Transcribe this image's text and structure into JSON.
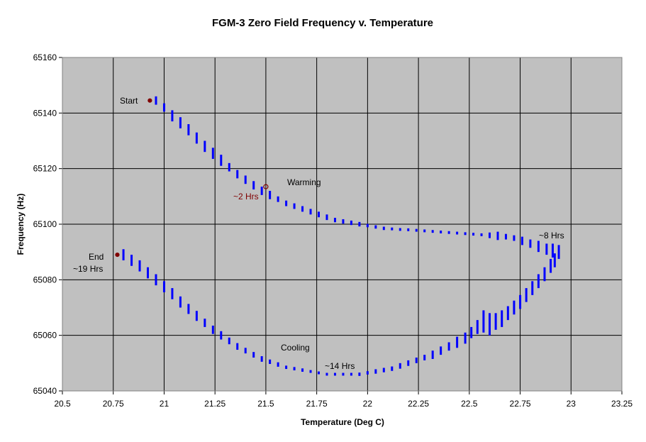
{
  "chart_data": {
    "type": "scatter",
    "title": "FGM-3 Zero Field Frequency  v.  Temperature",
    "xlabel": "Temperature (Deg C)",
    "ylabel": "Frequency (Hz)",
    "xlim": [
      20.5,
      23.25
    ],
    "ylim": [
      65040,
      65160
    ],
    "xticks": [
      "20.5",
      "20.75",
      "21",
      "21.25",
      "21.5",
      "21.75",
      "22",
      "22.25",
      "22.5",
      "22.75",
      "23",
      "23.25"
    ],
    "yticks": [
      "65040",
      "65060",
      "65080",
      "65100",
      "65120",
      "65140",
      "65160"
    ],
    "grid": true,
    "plot_background": "#C0C0C0",
    "series_color": "#0000FF",
    "marker_color": "#800000",
    "series": [
      {
        "x": [
          20.96,
          21.0,
          21.04,
          21.08,
          21.12,
          21.16,
          21.2,
          21.24,
          21.28,
          21.32,
          21.36,
          21.4,
          21.44,
          21.48,
          21.52,
          21.56,
          21.6,
          21.64,
          21.68,
          21.72,
          21.76,
          21.8,
          21.84,
          21.88,
          21.92,
          21.96,
          22.0,
          22.04,
          22.08,
          22.12,
          22.16,
          22.2,
          22.24,
          22.28,
          22.32,
          22.36,
          22.4,
          22.44,
          22.48,
          22.52,
          22.56,
          22.6,
          22.64,
          22.68,
          22.72,
          22.76,
          22.8,
          22.84,
          22.88,
          22.91,
          22.94
        ],
        "y": [
          65144.5,
          65142,
          65139,
          65136.5,
          65134,
          65131,
          65128,
          65125.5,
          65123,
          65120.5,
          65118,
          65116,
          65114,
          65112,
          65110.5,
          65109,
          65107.5,
          65106.5,
          65105.5,
          65104.5,
          65103.5,
          65102.5,
          65101.5,
          65101,
          65100.5,
          65100,
          65099.5,
          65099,
          65098.5,
          65098.3,
          65098.1,
          65098,
          65097.8,
          65097.6,
          65097.4,
          65097.2,
          65097,
          65096.8,
          65096.6,
          65096.4,
          65096.2,
          65096,
          65095.8,
          65095.5,
          65095,
          65094,
          65093,
          65092,
          65091,
          65090.5,
          65090
        ],
        "spread": [
          1.5,
          1.5,
          2,
          2,
          2,
          2,
          2,
          2,
          2,
          1.5,
          1.5,
          1.5,
          1.5,
          1.5,
          1.5,
          1,
          1,
          1,
          1,
          1,
          1,
          1,
          0.8,
          0.8,
          0.8,
          0.8,
          0.6,
          0.6,
          0.6,
          0.5,
          0.5,
          0.5,
          0.5,
          0.5,
          0.5,
          0.5,
          0.5,
          0.5,
          0.5,
          0.5,
          0.5,
          1,
          1.5,
          1,
          1,
          1.5,
          1.5,
          2,
          2,
          2.5,
          2.5
        ]
      },
      {
        "x": [
          22.92,
          22.9,
          22.87,
          22.84,
          22.81,
          22.78,
          22.75,
          22.72,
          22.69,
          22.66,
          22.63,
          22.6,
          22.57,
          22.54,
          22.51,
          22.48,
          22.44,
          22.4,
          22.36,
          22.32,
          22.28,
          22.24,
          22.2,
          22.16,
          22.12,
          22.08,
          22.04,
          22.0,
          21.96,
          21.92,
          21.88,
          21.84,
          21.8,
          21.76,
          21.72,
          21.68,
          21.64,
          21.6,
          21.56,
          21.52,
          21.48,
          21.44,
          21.4,
          21.36,
          21.32,
          21.28,
          21.24,
          21.2,
          21.16,
          21.12,
          21.08,
          21.04,
          21.0,
          20.96,
          20.92,
          20.88,
          20.84,
          20.8
        ],
        "y": [
          65087,
          65085,
          65082,
          65079.5,
          65077,
          65074.5,
          65072,
          65070,
          65068,
          65066,
          65065,
          65064,
          65065,
          65063,
          65061,
          65059,
          65057.5,
          65056,
          65054.5,
          65053,
          65052,
          65051,
          65050,
          65049,
          65048,
          65047.5,
          65047,
          65046.5,
          65046,
          65046,
          65046,
          65046,
          65046,
          65046.5,
          65047,
          65047.5,
          65048,
          65048.5,
          65049.5,
          65050.5,
          65051.5,
          65053,
          65054.5,
          65056,
          65058,
          65060,
          65062,
          65064.5,
          65067,
          65069.5,
          65072,
          65075,
          65077.5,
          65080,
          65082.5,
          65085,
          65087,
          65089
        ],
        "spread": [
          2.5,
          2.5,
          2.5,
          2.5,
          2.5,
          2.5,
          2.5,
          2.5,
          2.5,
          3,
          3,
          4,
          4,
          2.5,
          2,
          2,
          2,
          1.5,
          1.5,
          1.5,
          1,
          1,
          1,
          1,
          0.8,
          0.8,
          0.8,
          0.6,
          0.6,
          0.5,
          0.5,
          0.5,
          0.5,
          0.5,
          0.5,
          0.6,
          0.6,
          0.6,
          0.8,
          0.8,
          1,
          1,
          1,
          1.2,
          1.2,
          1.5,
          1.5,
          1.5,
          1.8,
          1.8,
          2,
          2,
          2,
          2,
          2,
          2,
          2,
          2
        ]
      }
    ],
    "markers": [
      {
        "x": 20.93,
        "y": 65144.5,
        "label": "Start",
        "filled": true
      },
      {
        "x": 21.5,
        "y": 65113.5,
        "label": "~2 Hrs",
        "filled": false
      },
      {
        "x": 20.77,
        "y": 65089,
        "label": "End",
        "filled": true
      }
    ],
    "annotations": [
      "Start",
      "Warming",
      "~2 Hrs",
      "~8 Hrs",
      "End",
      "~19 Hrs",
      "Cooling",
      "~14 Hrs"
    ]
  }
}
